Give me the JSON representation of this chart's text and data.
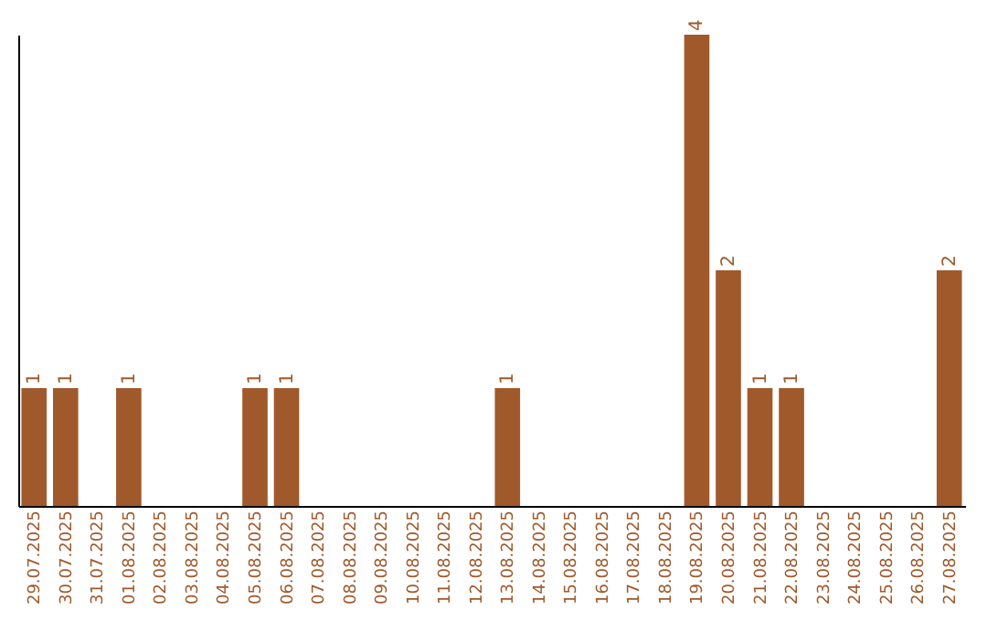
{
  "chart_data": {
    "type": "bar",
    "categories": [
      "29.07.2025",
      "30.07.2025",
      "31.07.2025",
      "01.08.2025",
      "02.08.2025",
      "03.08.2025",
      "04.08.2025",
      "05.08.2025",
      "06.08.2025",
      "07.08.2025",
      "08.08.2025",
      "09.08.2025",
      "10.08.2025",
      "11.08.2025",
      "12.08.2025",
      "13.08.2025",
      "14.08.2025",
      "15.08.2025",
      "16.08.2025",
      "17.08.2025",
      "18.08.2025",
      "19.08.2025",
      "20.08.2025",
      "21.08.2025",
      "22.08.2025",
      "23.08.2025",
      "24.08.2025",
      "25.08.2025",
      "26.08.2025",
      "27.08.2025"
    ],
    "values": [
      1,
      1,
      0,
      1,
      0,
      0,
      0,
      1,
      1,
      0,
      0,
      0,
      0,
      0,
      0,
      1,
      0,
      0,
      0,
      0,
      0,
      4,
      2,
      1,
      1,
      0,
      0,
      0,
      0,
      2
    ],
    "value_labels": [
      "1",
      "1",
      null,
      "1",
      null,
      null,
      null,
      "1",
      "1",
      null,
      null,
      null,
      null,
      null,
      null,
      "1",
      null,
      null,
      null,
      null,
      null,
      "4",
      "2",
      "1",
      "1",
      null,
      null,
      null,
      null,
      "2"
    ],
    "color": "#a0592b",
    "ylim": [
      0,
      4
    ],
    "grid": false,
    "tick_labels": "x"
  }
}
